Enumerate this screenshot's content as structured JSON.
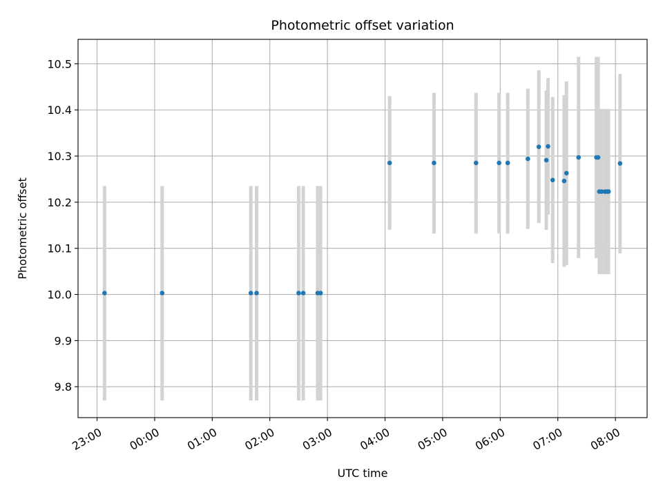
{
  "chart_data": {
    "type": "scatter",
    "title": "Photometric offset variation",
    "xlabel": "UTC time",
    "ylabel": "Photometric offset",
    "grid": true,
    "xlim": [
      -0.33,
      9.55
    ],
    "ylim": [
      9.733,
      10.553
    ],
    "x_ticks": [
      {
        "value": 0,
        "label": "23:00"
      },
      {
        "value": 1,
        "label": "00:00"
      },
      {
        "value": 2,
        "label": "01:00"
      },
      {
        "value": 3,
        "label": "02:00"
      },
      {
        "value": 4,
        "label": "03:00"
      },
      {
        "value": 5,
        "label": "04:00"
      },
      {
        "value": 6,
        "label": "05:00"
      },
      {
        "value": 7,
        "label": "06:00"
      },
      {
        "value": 8,
        "label": "07:00"
      },
      {
        "value": 9,
        "label": "08:00"
      }
    ],
    "y_ticks": [
      {
        "value": 9.8,
        "label": "9.8"
      },
      {
        "value": 9.9,
        "label": "9.9"
      },
      {
        "value": 10.0,
        "label": "10.0"
      },
      {
        "value": 10.1,
        "label": "10.1"
      },
      {
        "value": 10.2,
        "label": "10.2"
      },
      {
        "value": 10.3,
        "label": "10.3"
      },
      {
        "value": 10.4,
        "label": "10.4"
      },
      {
        "value": 10.5,
        "label": "10.5"
      }
    ],
    "colors": {
      "point": "#1f77b4",
      "errorbar": "#d3d3d3",
      "grid": "#b0b0b0"
    },
    "points": [
      {
        "x": 0.13,
        "y": 10.003,
        "yerr_low": 9.77,
        "yerr_high": 10.235
      },
      {
        "x": 1.13,
        "y": 10.003,
        "yerr_low": 9.77,
        "yerr_high": 10.235
      },
      {
        "x": 2.67,
        "y": 10.003,
        "yerr_low": 9.77,
        "yerr_high": 10.235
      },
      {
        "x": 2.77,
        "y": 10.003,
        "yerr_low": 9.77,
        "yerr_high": 10.235
      },
      {
        "x": 3.5,
        "y": 10.003,
        "yerr_low": 9.77,
        "yerr_high": 10.235
      },
      {
        "x": 3.58,
        "y": 10.003,
        "yerr_low": 9.77,
        "yerr_high": 10.235
      },
      {
        "x": 3.83,
        "y": 10.003,
        "yerr_low": 9.77,
        "yerr_high": 10.235
      },
      {
        "x": 3.88,
        "y": 10.003,
        "yerr_low": 9.77,
        "yerr_high": 10.235
      },
      {
        "x": 5.08,
        "y": 10.285,
        "yerr_low": 10.14,
        "yerr_high": 10.43
      },
      {
        "x": 5.85,
        "y": 10.285,
        "yerr_low": 10.132,
        "yerr_high": 10.437
      },
      {
        "x": 6.58,
        "y": 10.285,
        "yerr_low": 10.132,
        "yerr_high": 10.437
      },
      {
        "x": 6.98,
        "y": 10.285,
        "yerr_low": 10.132,
        "yerr_high": 10.437
      },
      {
        "x": 7.13,
        "y": 10.285,
        "yerr_low": 10.132,
        "yerr_high": 10.437
      },
      {
        "x": 7.48,
        "y": 10.294,
        "yerr_low": 10.142,
        "yerr_high": 10.446
      },
      {
        "x": 7.67,
        "y": 10.32,
        "yerr_low": 10.155,
        "yerr_high": 10.486
      },
      {
        "x": 7.8,
        "y": 10.291,
        "yerr_low": 10.14,
        "yerr_high": 10.442
      },
      {
        "x": 7.83,
        "y": 10.321,
        "yerr_low": 10.173,
        "yerr_high": 10.469
      },
      {
        "x": 7.91,
        "y": 10.248,
        "yerr_low": 10.068,
        "yerr_high": 10.428
      },
      {
        "x": 8.11,
        "y": 10.246,
        "yerr_low": 10.06,
        "yerr_high": 10.432
      },
      {
        "x": 8.15,
        "y": 10.263,
        "yerr_low": 10.064,
        "yerr_high": 10.462
      },
      {
        "x": 8.36,
        "y": 10.297,
        "yerr_low": 10.079,
        "yerr_high": 10.515
      },
      {
        "x": 8.67,
        "y": 10.297,
        "yerr_low": 10.079,
        "yerr_high": 10.515
      },
      {
        "x": 8.7,
        "y": 10.297,
        "yerr_low": 10.079,
        "yerr_high": 10.515
      },
      {
        "x": 8.72,
        "y": 10.223,
        "yerr_low": 10.044,
        "yerr_high": 10.402
      },
      {
        "x": 8.76,
        "y": 10.223,
        "yerr_low": 10.044,
        "yerr_high": 10.402
      },
      {
        "x": 8.82,
        "y": 10.223,
        "yerr_low": 10.044,
        "yerr_high": 10.402
      },
      {
        "x": 8.85,
        "y": 10.223,
        "yerr_low": 10.044,
        "yerr_high": 10.402
      },
      {
        "x": 8.88,
        "y": 10.223,
        "yerr_low": 10.044,
        "yerr_high": 10.402
      },
      {
        "x": 9.08,
        "y": 10.284,
        "yerr_low": 10.089,
        "yerr_high": 10.478
      }
    ]
  }
}
